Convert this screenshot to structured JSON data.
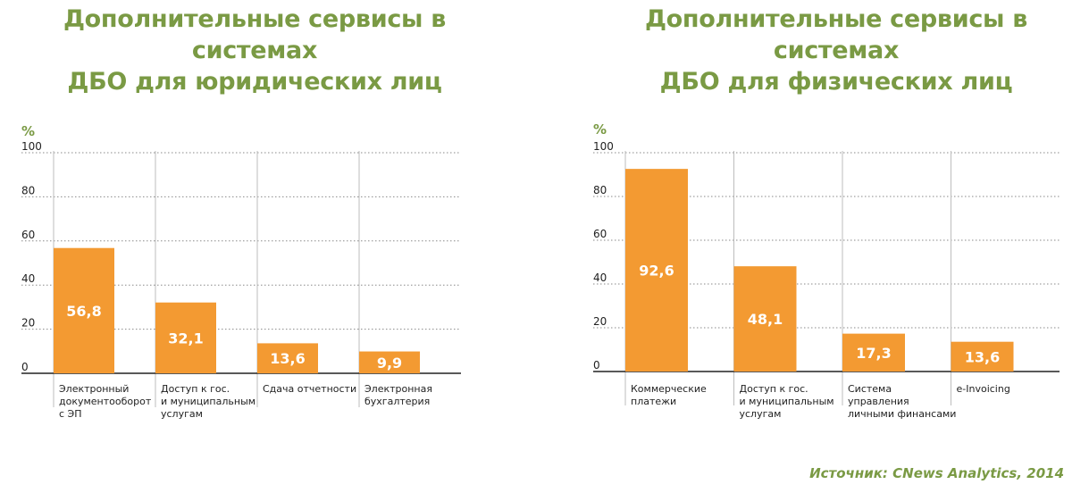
{
  "chart_data": [
    {
      "type": "bar",
      "title": [
        "Дополнительные сервисы в системах",
        "ДБО для юридических лиц"
      ],
      "ylabel": "%",
      "ylim": [
        0,
        100
      ],
      "yticks": [
        "0",
        "20",
        "40",
        "60",
        "80",
        "100"
      ],
      "grid": true,
      "categories": [
        [
          "Электронный",
          "документооборот",
          "с ЭП"
        ],
        [
          "Доступ к гос.",
          "и муниципальным",
          "услугам"
        ],
        [
          "Сдача отчетности"
        ],
        [
          "Электронная",
          "бухгалтерия"
        ]
      ],
      "values": [
        56.8,
        32.1,
        13.6,
        9.9
      ],
      "value_labels": [
        "56,8",
        "32,1",
        "13,6",
        "9,9"
      ],
      "bar_color": "#f39a32"
    },
    {
      "type": "bar",
      "title": [
        "Дополнительные сервисы в системах",
        "ДБО для физических лиц"
      ],
      "ylabel": "%",
      "ylim": [
        0,
        100
      ],
      "yticks": [
        "0",
        "20",
        "40",
        "60",
        "80",
        "100"
      ],
      "grid": true,
      "categories": [
        [
          "Коммерческие",
          "платежи"
        ],
        [
          "Доступ к гос.",
          "и муниципальным",
          "услугам"
        ],
        [
          "Система",
          "управления",
          "личными финансами"
        ],
        [
          "e-Invoicing"
        ]
      ],
      "values": [
        92.6,
        48.1,
        17.3,
        13.6
      ],
      "value_labels": [
        "92,6",
        "48,1",
        "17,3",
        "13,6"
      ],
      "bar_color": "#f39a32"
    }
  ],
  "source": "Источник: CNews Analytics, 2014",
  "colors": {
    "accent_green": "#7a9a44",
    "bar_orange": "#f39a32"
  }
}
